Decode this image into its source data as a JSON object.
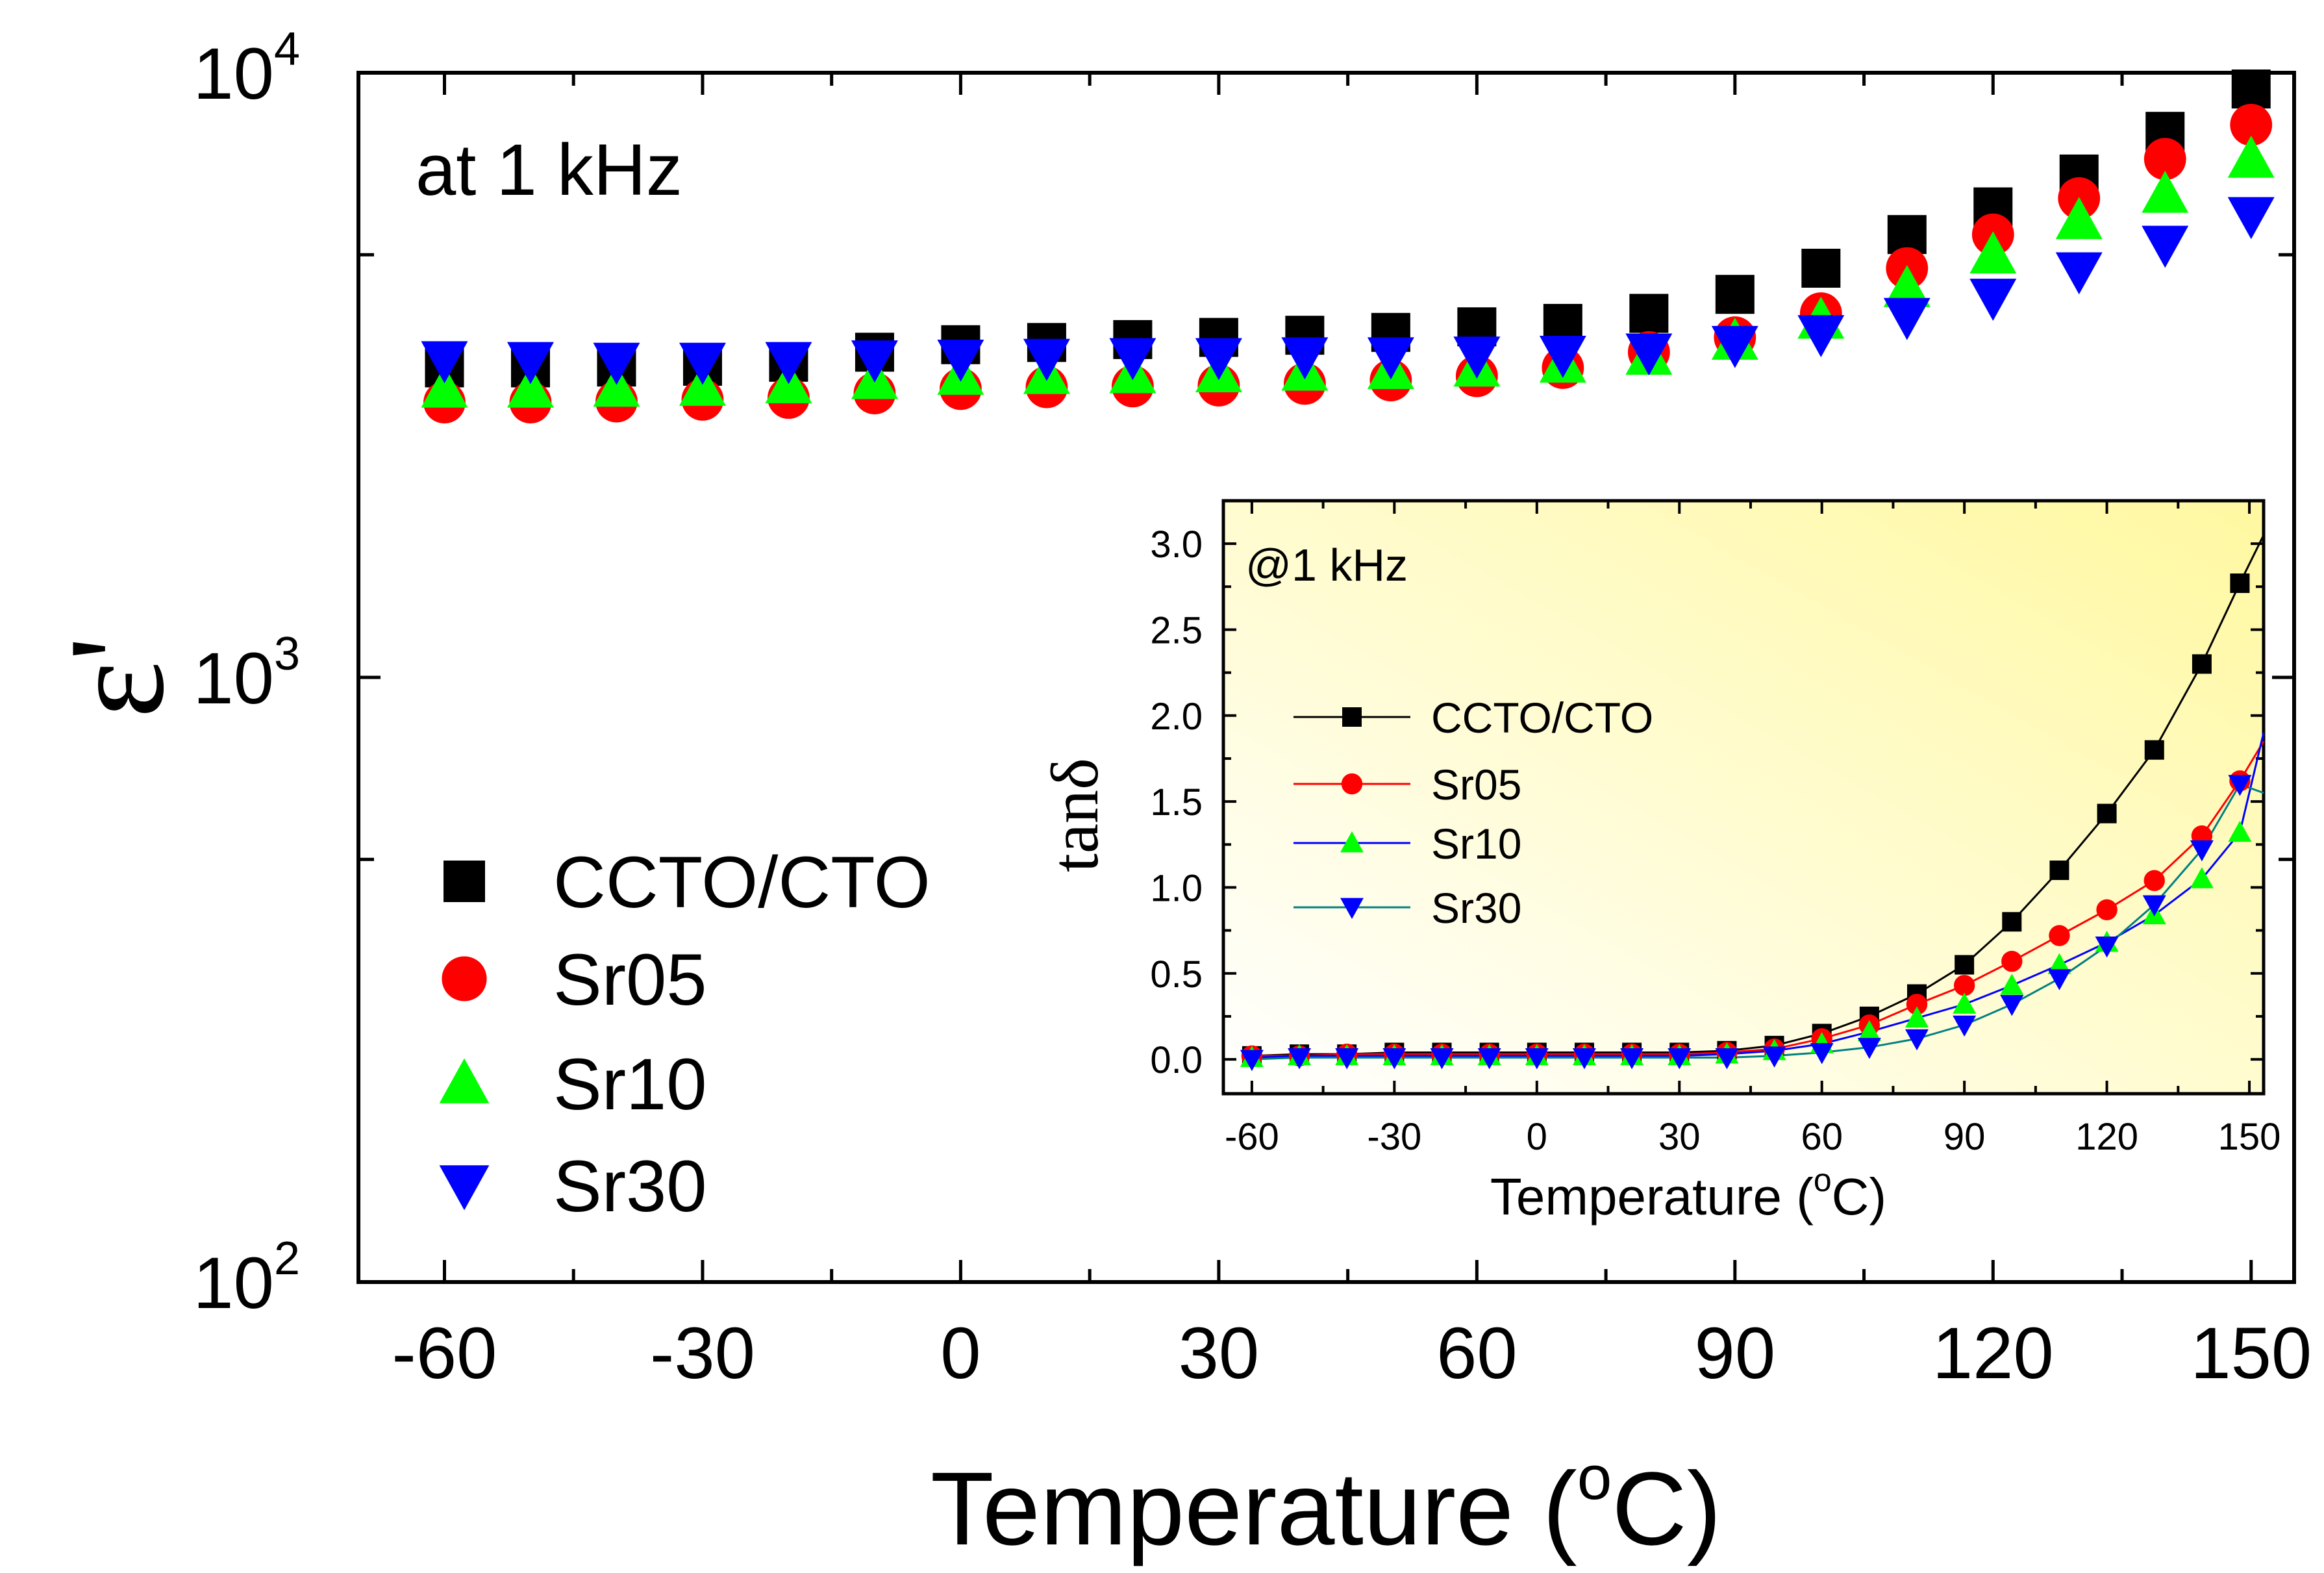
{
  "chart_data": [
    {
      "type": "scatter",
      "title": "",
      "annotation": "at 1 kHz",
      "xlabel": "Temperature (",
      "xlabel_sup": "o",
      "xlabel_end": "C)",
      "ylabel": "ε'",
      "yscale": "log",
      "xlim": [
        -70,
        155
      ],
      "ylim": [
        100,
        10000
      ],
      "xticks": [
        -60,
        -30,
        0,
        30,
        60,
        90,
        120,
        150
      ],
      "xtick_labels": [
        "-60",
        "-30",
        "0",
        "30",
        "60",
        "90",
        "120",
        "150"
      ],
      "yticks": [
        {
          "value": 100,
          "base": "10",
          "exp": "2"
        },
        {
          "value": 1000,
          "base": "10",
          "exp": "3"
        },
        {
          "value": 10000,
          "base": "10",
          "exp": "4"
        }
      ],
      "x": [
        -60,
        -50,
        -40,
        -30,
        -20,
        -10,
        0,
        10,
        20,
        30,
        40,
        50,
        60,
        70,
        80,
        90,
        100,
        110,
        120,
        130,
        140,
        150
      ],
      "series": [
        {
          "name": "CCTO/CTO",
          "marker": "square",
          "color": "#000000",
          "values": [
            3250,
            3250,
            3260,
            3270,
            3320,
            3450,
            3550,
            3580,
            3620,
            3650,
            3680,
            3720,
            3800,
            3850,
            4000,
            4300,
            4750,
            5400,
            6000,
            6800,
            8000,
            9400
          ]
        },
        {
          "name": "Sr05",
          "marker": "circle",
          "color": "#ff0000",
          "values": [
            2850,
            2850,
            2860,
            2880,
            2900,
            2950,
            3000,
            3020,
            3030,
            3040,
            3060,
            3100,
            3150,
            3250,
            3450,
            3650,
            4000,
            4750,
            5400,
            6200,
            7200,
            8200
          ]
        },
        {
          "name": "Sr10",
          "marker": "triangle-up",
          "color": "#00ff00",
          "values": [
            3000,
            3000,
            3010,
            3020,
            3050,
            3100,
            3150,
            3160,
            3170,
            3180,
            3200,
            3220,
            3250,
            3300,
            3400,
            3600,
            3900,
            4400,
            5000,
            5700,
            6300,
            7200
          ]
        },
        {
          "name": "Sr30",
          "marker": "triangle-down",
          "color": "#0000ff",
          "values": [
            3350,
            3340,
            3330,
            3330,
            3340,
            3360,
            3370,
            3380,
            3390,
            3390,
            3400,
            3400,
            3410,
            3420,
            3450,
            3550,
            3700,
            3950,
            4250,
            4700,
            5200,
            5800
          ]
        }
      ],
      "legend_position": "lower-left"
    },
    {
      "type": "line",
      "role": "inset",
      "annotation": "@1 kHz",
      "xlabel": "Temperature (",
      "xlabel_sup": "o",
      "xlabel_end": "C)",
      "ylabel": "tanδ",
      "xlim": [
        -66,
        153
      ],
      "ylim": [
        -0.2,
        3.25
      ],
      "xticks": [
        -60,
        -30,
        0,
        30,
        60,
        90,
        120,
        150
      ],
      "xtick_labels": [
        "-60",
        "-30",
        "0",
        "30",
        "60",
        "90",
        "120",
        "150"
      ],
      "yticks": [
        0.0,
        0.5,
        1.0,
        1.5,
        2.0,
        2.5,
        3.0
      ],
      "ytick_labels": [
        "0.0",
        "0.5",
        "1.0",
        "1.5",
        "2.0",
        "2.5",
        "3.0"
      ],
      "x": [
        -60,
        -50,
        -40,
        -30,
        -20,
        -10,
        0,
        10,
        20,
        30,
        40,
        50,
        60,
        70,
        80,
        90,
        100,
        110,
        120,
        130,
        140,
        148
      ],
      "series": [
        {
          "name": "CCTO/CTO",
          "marker": "square",
          "color": "#000000",
          "line_end": 3.05,
          "values": [
            0.02,
            0.03,
            0.03,
            0.04,
            0.04,
            0.04,
            0.04,
            0.04,
            0.04,
            0.04,
            0.05,
            0.08,
            0.15,
            0.25,
            0.38,
            0.55,
            0.8,
            1.1,
            1.43,
            1.8,
            2.3,
            2.77
          ]
        },
        {
          "name": "Sr05",
          "marker": "circle",
          "color": "#ff0000",
          "line_end": 1.85,
          "values": [
            0.02,
            0.02,
            0.03,
            0.03,
            0.03,
            0.03,
            0.03,
            0.03,
            0.03,
            0.03,
            0.04,
            0.06,
            0.12,
            0.2,
            0.32,
            0.43,
            0.57,
            0.72,
            0.87,
            1.04,
            1.3,
            1.62
          ]
        },
        {
          "name": "Sr10",
          "marker": "triangle-up",
          "color": "#00ff00",
          "line_color": "#0000ff",
          "line_end": 1.9,
          "values": [
            0.01,
            0.02,
            0.02,
            0.02,
            0.02,
            0.02,
            0.02,
            0.02,
            0.02,
            0.02,
            0.03,
            0.05,
            0.09,
            0.16,
            0.24,
            0.32,
            0.43,
            0.55,
            0.68,
            0.84,
            1.05,
            1.32
          ]
        },
        {
          "name": "Sr30",
          "marker": "triangle-down",
          "color": "#0000ff",
          "line_color": "#008080",
          "line_end": 1.55,
          "values": [
            0.0,
            0.01,
            0.01,
            0.01,
            0.01,
            0.01,
            0.01,
            0.01,
            0.01,
            0.01,
            0.01,
            0.02,
            0.04,
            0.07,
            0.12,
            0.2,
            0.32,
            0.47,
            0.66,
            0.9,
            1.22,
            1.6
          ]
        }
      ],
      "background_gradient": [
        "#fff8a0",
        "#ffffff"
      ],
      "legend_position": "middle-left"
    }
  ]
}
